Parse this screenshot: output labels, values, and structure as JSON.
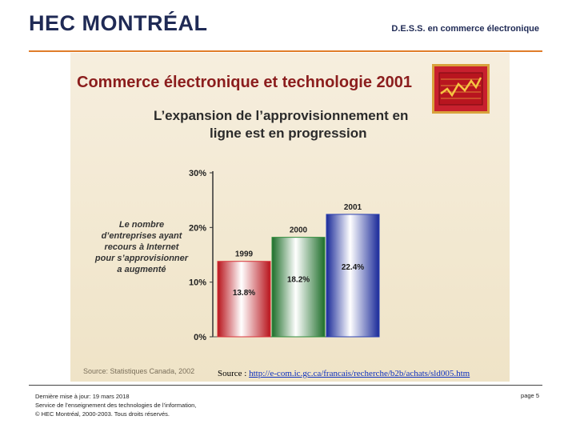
{
  "header": {
    "logo_text": "HEC MONTRÉAL",
    "program": "D.E.S.S. en commerce électronique"
  },
  "slide": {
    "title": "Commerce électronique et technologie 2001",
    "subtitle_line1": "L’expansion de l’approvisionnement en",
    "subtitle_line2": "ligne est en progression",
    "note_lines": [
      "Le nombre",
      "d’entreprises ayant",
      "recours à Internet",
      "pour s’approvisionner",
      "a augmenté"
    ],
    "source": "Source: Statistiques Canada, 2002",
    "emblem_icon": "line-chart-icon"
  },
  "chart_data": {
    "type": "bar",
    "categories": [
      "1999",
      "2000",
      "2001"
    ],
    "values": [
      13.8,
      18.2,
      22.4
    ],
    "value_labels": [
      "13.8%",
      "18.2%",
      "22.4%"
    ],
    "yticks": [
      "0%",
      "10%",
      "20%",
      "30%"
    ],
    "ylim": [
      0,
      30
    ],
    "colors": [
      "#d8323a",
      "#2e8b3a",
      "#2a3fb0"
    ],
    "title": "",
    "xlabel": "",
    "ylabel": ""
  },
  "footer": {
    "source_prefix": "Source : ",
    "source_url": "http://e-com.ic.gc.ca/francais/recherche/b2b/achats/sld005.htm",
    "lines": [
      "Dernière mise à jour: 19 mars 2018",
      "Service de l’enseignement des technologies de l’information,",
      "© HEC Montréal, 2000-2003. Tous droits réservés."
    ],
    "page": "page 5"
  }
}
